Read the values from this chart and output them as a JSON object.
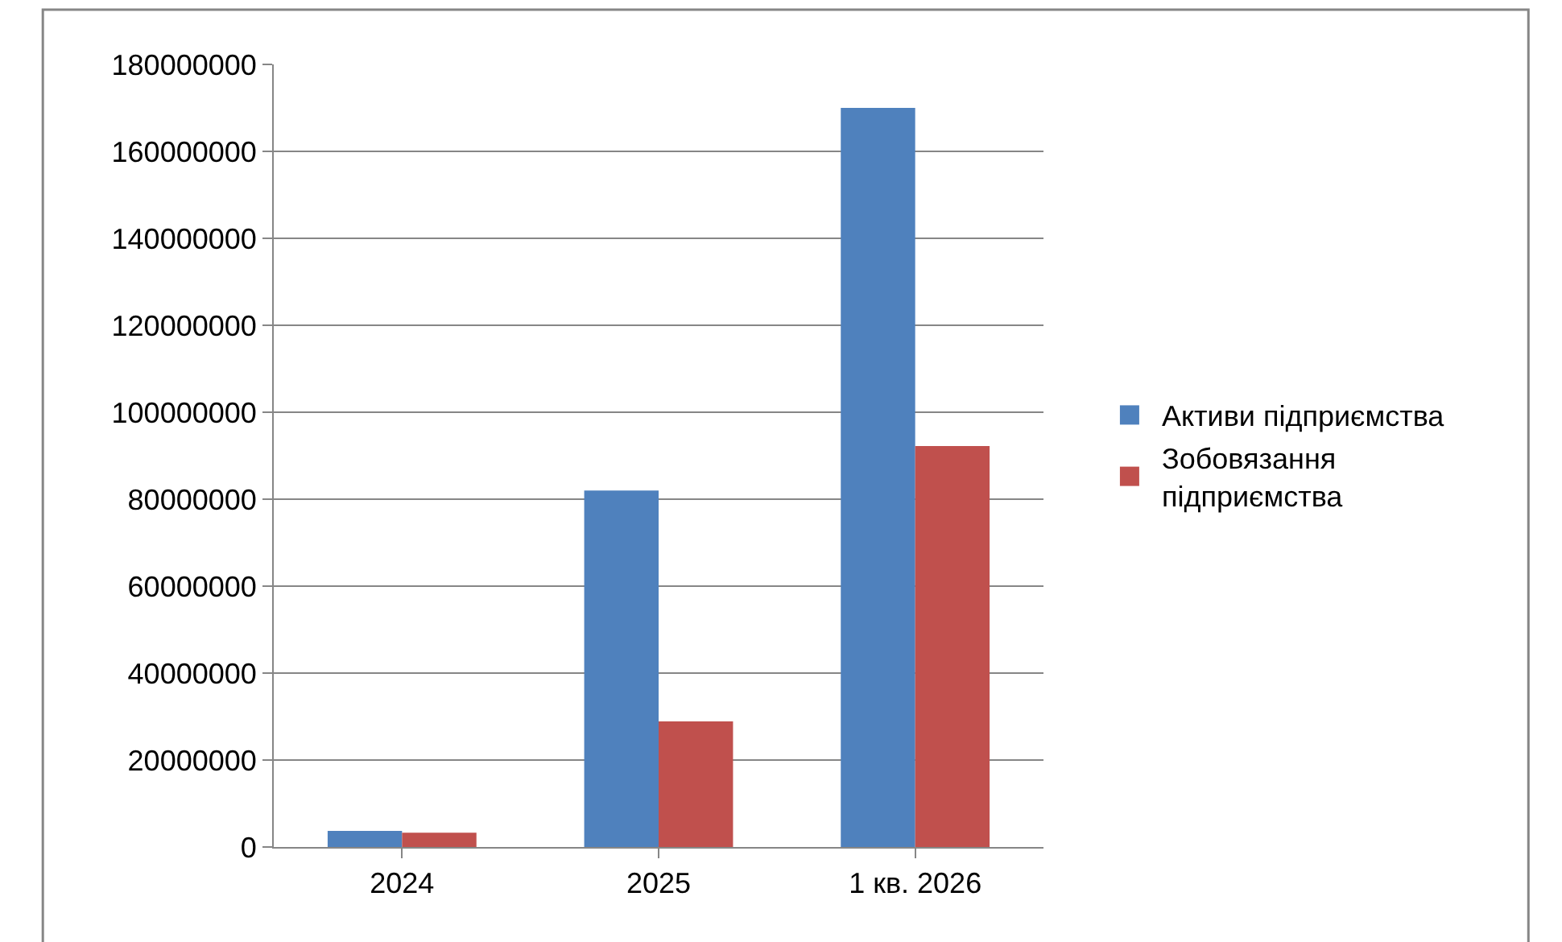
{
  "chart_data": {
    "type": "bar",
    "categories": [
      "2024",
      "2025",
      "1 кв. 2026"
    ],
    "series": [
      {
        "name": "Активи підприємства",
        "color": "#4f81bd",
        "values": [
          3700000,
          82000000,
          170000000
        ]
      },
      {
        "name": "Зобовязання підприємства",
        "color": "#c0504d",
        "values": [
          3300000,
          28900000,
          92200000
        ]
      }
    ],
    "ylim": [
      0,
      180000000
    ],
    "yticks": [
      0,
      20000000,
      40000000,
      60000000,
      80000000,
      100000000,
      120000000,
      140000000,
      160000000,
      180000000
    ],
    "grid": "y",
    "legend": "right"
  }
}
